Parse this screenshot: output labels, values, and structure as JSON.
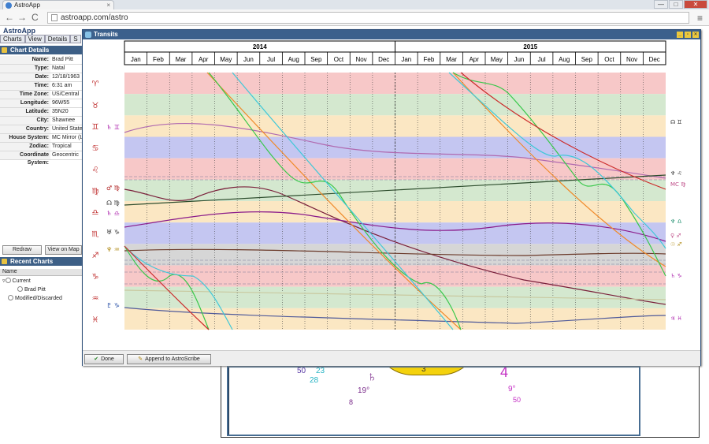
{
  "browser": {
    "tab_title": "AstroApp",
    "url": "astroapp.com/astro",
    "controls": {
      "minimize": "—",
      "maximize": "□",
      "close": "✕",
      "back": "←",
      "forward": "→",
      "reload": "C",
      "menu": "≡",
      "tab_close": "×"
    }
  },
  "app": {
    "title": "AstroApp",
    "tabs": [
      "Charts",
      "View",
      "Details",
      "S"
    ],
    "chart_details": {
      "header": "Chart Details",
      "rows": [
        {
          "k": "Name:",
          "v": "Brad Pitt"
        },
        {
          "k": "Type:",
          "v": "Natal"
        },
        {
          "k": "Date:",
          "v": "12/18/1963"
        },
        {
          "k": "Time:",
          "v": "6:31 am"
        },
        {
          "k": "Time Zone:",
          "v": "US/Central"
        },
        {
          "k": "Longitude:",
          "v": "96W55"
        },
        {
          "k": "Latitude:",
          "v": "35N20"
        },
        {
          "k": "City:",
          "v": "Shawnee"
        },
        {
          "k": "Country:",
          "v": "United States"
        },
        {
          "k": "House System:",
          "v": "MC Mirror (Lev"
        },
        {
          "k": "Zodiac:",
          "v": "Tropical"
        },
        {
          "k": "Coordinate System:",
          "v": "Geocentric"
        }
      ]
    },
    "buttons": {
      "redraw": "Redraw",
      "view_on_map": "View on Map"
    },
    "recent_charts": {
      "header": "Recent Charts",
      "column": "Name",
      "tree": [
        "Current",
        "Brad Pitt",
        "Modified/Discarded"
      ]
    }
  },
  "background_chart": {
    "labels": [
      "50",
      "23",
      "28",
      "3",
      "19°",
      "8",
      "4",
      "9°",
      "50"
    ]
  },
  "dialog": {
    "title": "Transits",
    "title_buttons": [
      "_",
      "▫",
      "✕"
    ],
    "years": [
      "2014",
      "2015"
    ],
    "months": [
      "Jan",
      "Feb",
      "Mar",
      "Apr",
      "May",
      "Jun",
      "Jul",
      "Aug",
      "Sep",
      "Oct",
      "Nov",
      "Dec",
      "Jan",
      "Feb",
      "Mar",
      "Apr",
      "May",
      "Jun",
      "Jul",
      "Aug",
      "Sep",
      "Oct",
      "Nov",
      "Dec"
    ],
    "done_label": "Done",
    "append_label": "Append to AstroScribe",
    "icons": {
      "done": "check-icon",
      "append": "scribe-icon"
    }
  },
  "chart_data": {
    "type": "line",
    "title": "Transits",
    "x_range": [
      "2014-01",
      "2015-12"
    ],
    "y_range_signs": [
      "Aries",
      "Pisces"
    ],
    "bands": [
      {
        "sign": "Aries",
        "glyph": "♈",
        "color": "#f7c8c8"
      },
      {
        "sign": "Taurus",
        "glyph": "♉",
        "color": "#d4e8cf"
      },
      {
        "sign": "Gemini",
        "glyph": "♊",
        "color": "#fbe7c3"
      },
      {
        "sign": "Cancer",
        "glyph": "♋",
        "color": "#c4c6f1"
      },
      {
        "sign": "Leo",
        "glyph": "♌",
        "color": "#f7c8c8"
      },
      {
        "sign": "Virgo",
        "glyph": "♍",
        "color": "#d4e8cf"
      },
      {
        "sign": "Libra",
        "glyph": "♎",
        "color": "#fbe7c3"
      },
      {
        "sign": "Scorpio",
        "glyph": "♏",
        "color": "#c4c6f1"
      },
      {
        "sign": "Sagittarius",
        "glyph": "♐",
        "color": "#d6d6d6"
      },
      {
        "sign": "Capricorn",
        "glyph": "♑",
        "color": "#f7c8c8"
      },
      {
        "sign": "Aquarius",
        "glyph": "♒",
        "color": "#d4e8cf"
      },
      {
        "sign": "Pisces",
        "glyph": "♓",
        "color": "#fbe7c3"
      }
    ],
    "left_labels": [
      {
        "text": "♄ ♊",
        "color": "#b02db0"
      },
      {
        "text": "♂ ♍",
        "color": "#b02020"
      },
      {
        "text": "☊ ♍",
        "color": "#333333"
      },
      {
        "text": "♄ ♎",
        "color": "#b02db0"
      },
      {
        "text": "♅ ♑",
        "color": "#333333"
      },
      {
        "text": "♆ ♒",
        "color": "#b08a15"
      },
      {
        "text": "♇ ♑",
        "color": "#2b52a8"
      }
    ],
    "right_labels": [
      {
        "text": "☊ ♊",
        "color": "#333333"
      },
      {
        "text": "♆ ♌",
        "color": "#333333"
      },
      {
        "text": "MC ♍",
        "color": "#c0508a"
      },
      {
        "text": "♆ ♎",
        "color": "#1f8f6f"
      },
      {
        "text": "♀ ♐",
        "color": "#c0508a"
      },
      {
        "text": "☉ ♐",
        "color": "#b08a15"
      },
      {
        "text": "♄ ♑",
        "color": "#b02db0"
      },
      {
        "text": "♃ ♓",
        "color": "#b02db0"
      }
    ],
    "series": [
      {
        "color": "#b06ab0"
      },
      {
        "color": "#7a1f3a"
      },
      {
        "color": "#2d4d2d"
      },
      {
        "color": "#8a1a8a"
      },
      {
        "color": "#c9c9a0"
      },
      {
        "color": "#4f5a9a"
      },
      {
        "color": "#6b3a2a"
      },
      {
        "color": "#f08a2a"
      },
      {
        "color": "#38c84a"
      },
      {
        "color": "#3fc8d8"
      },
      {
        "color": "#cc2c2c"
      }
    ]
  }
}
